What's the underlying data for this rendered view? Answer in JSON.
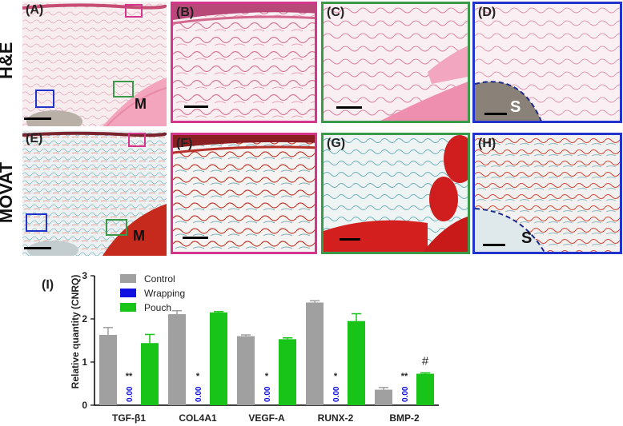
{
  "rows": {
    "he": "H&E",
    "movat": "MOVAT"
  },
  "panels": {
    "A": "(A)",
    "B": "(B)",
    "C": "(C)",
    "D": "(D)",
    "E": "(E)",
    "F": "(F)",
    "G": "(G)",
    "H": "(H)",
    "I": "(I)"
  },
  "markers": {
    "muscle": "M",
    "scaffold": "S"
  },
  "colors": {
    "pink": "#d4368d",
    "green": "#3a9a4a",
    "blue": "#2233cc",
    "control": "#a0a0a0",
    "wrapping": "#1010e0",
    "pouch": "#19c419"
  },
  "chart_data": {
    "type": "bar",
    "ylabel": "Relative quantity (CNRQ)",
    "ylim": [
      0,
      3
    ],
    "yticks": [
      "0",
      "1",
      "2",
      "3"
    ],
    "categories": [
      "TGF-β1",
      "COL4A1",
      "VEGF-A",
      "RUNX-2",
      "BMP-2"
    ],
    "series": [
      {
        "name": "Control",
        "values": [
          1.63,
          2.11,
          1.6,
          2.38,
          0.36
        ],
        "errors": [
          0.17,
          0.08,
          0.03,
          0.04,
          0.05
        ]
      },
      {
        "name": "Wrapping",
        "values": [
          0,
          0,
          0,
          0,
          0
        ],
        "errors": [
          0,
          0,
          0,
          0,
          0
        ]
      },
      {
        "name": "Pouch",
        "values": [
          1.44,
          2.15,
          1.53,
          1.95,
          0.73
        ],
        "errors": [
          0.2,
          0.02,
          0.03,
          0.17,
          0.02
        ]
      }
    ],
    "value_labels": [
      "0.00",
      "0.00",
      "0.00",
      "0.00",
      "0.00"
    ],
    "significance": [
      "**",
      "*",
      "*",
      "*",
      "**"
    ],
    "extra_marks": [
      "",
      "",
      "",
      "",
      "#"
    ],
    "legend_position": "top-left"
  }
}
